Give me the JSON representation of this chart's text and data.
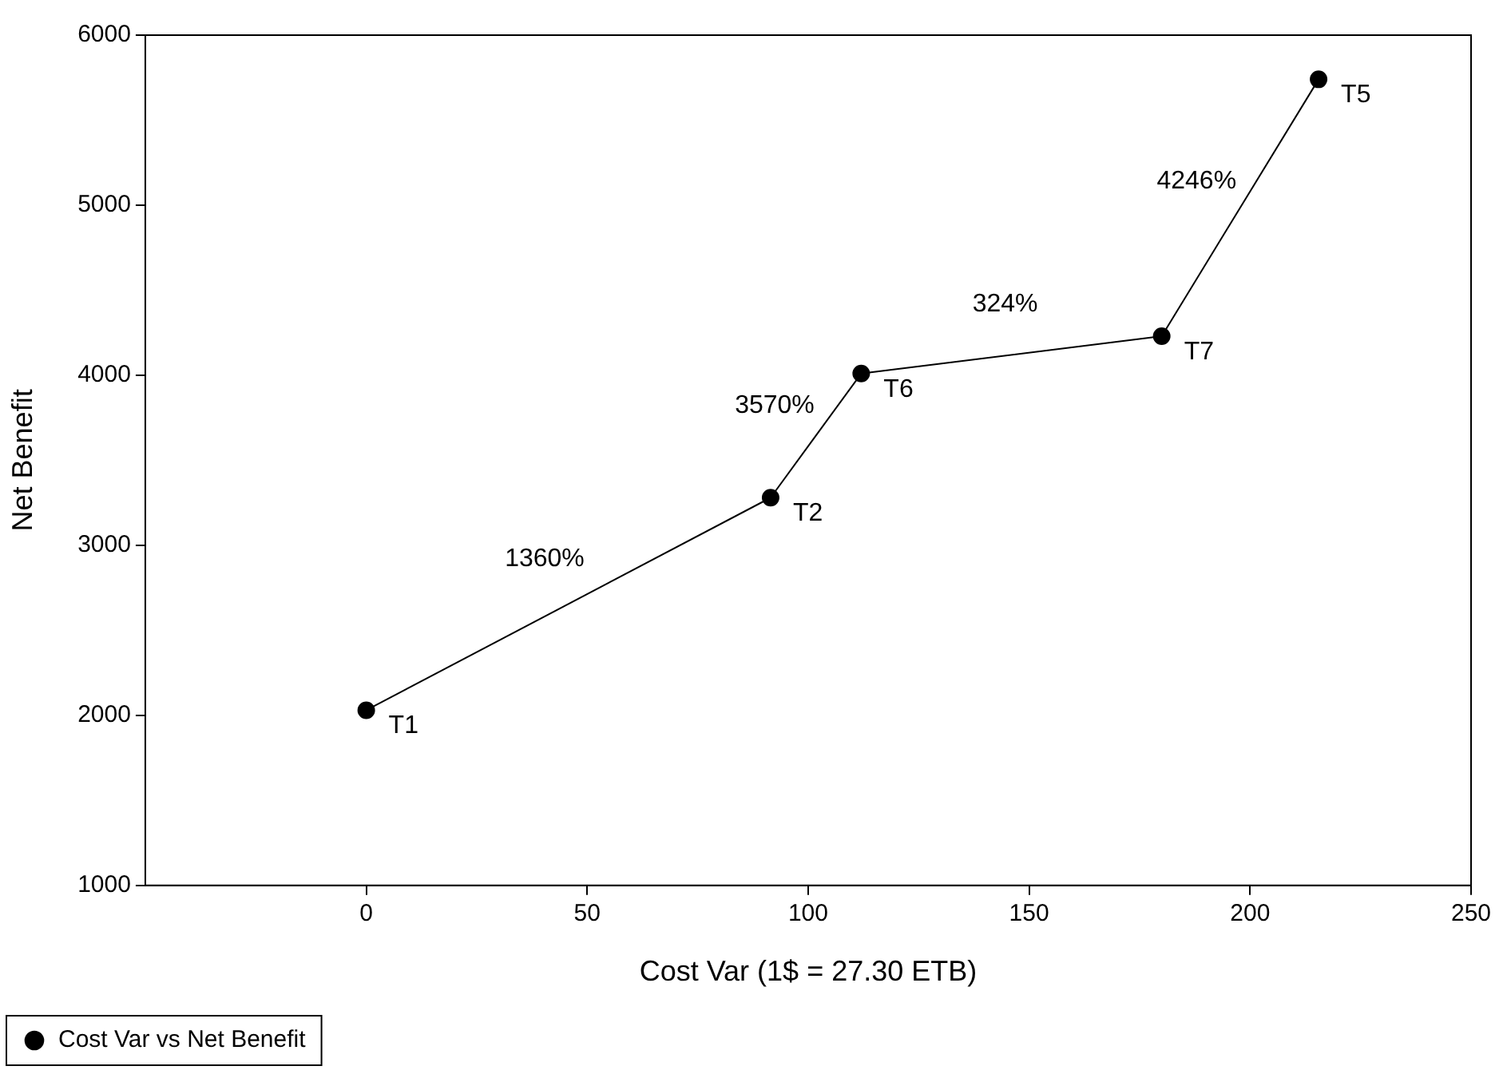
{
  "chart_data": {
    "type": "line",
    "xlabel": "Cost Var (1$ = 27.30 ETB)",
    "ylabel": "Net Benefit",
    "x": [
      0,
      91.5,
      112,
      180,
      215.5
    ],
    "series": [
      {
        "name": "Cost Var vs Net Benefit",
        "color": "#000000",
        "values": [
          2030,
          3280,
          4010,
          4230,
          5740
        ],
        "value_labels": [
          "T1",
          "T2",
          "T6",
          "T7",
          "T5"
        ]
      }
    ],
    "xlim": [
      -50,
      250
    ],
    "xticks": [
      0,
      50,
      100,
      150,
      200,
      250
    ],
    "ylim": [
      1000,
      6000
    ],
    "yticks": [
      1000,
      2000,
      3000,
      4000,
      5000,
      6000
    ],
    "annotations": [
      "1360%",
      "3570%",
      "324%",
      "4246%"
    ],
    "grid": false,
    "legend": "bottom left",
    "marker": "circle",
    "line_style": "solid"
  }
}
